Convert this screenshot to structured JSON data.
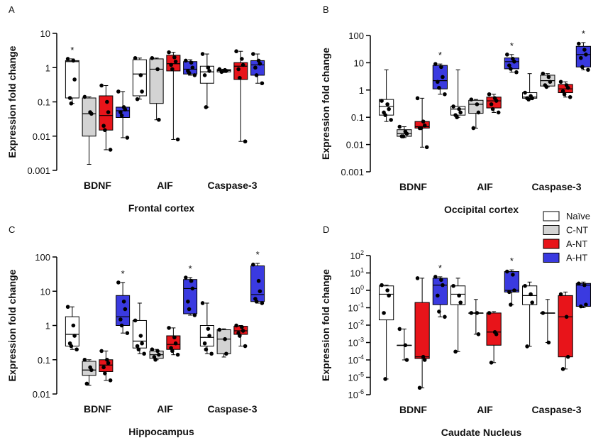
{
  "legend": [
    {
      "name": "Naïve",
      "color": "#ffffff"
    },
    {
      "name": "C-NT",
      "color": "#d3d3d3"
    },
    {
      "name": "A-NT",
      "color": "#e8141a"
    },
    {
      "name": "A-HT",
      "color": "#3a3ae0"
    }
  ],
  "chart_data": [
    {
      "type": "box",
      "panel": "A",
      "title": "Frontal cortex",
      "ylabel": "Expression fold change",
      "log": true,
      "categories": [
        "BDNF",
        "AIF",
        "Caspase-3"
      ],
      "ylim": [
        0.001,
        10
      ],
      "yticks": [
        0.001,
        0.01,
        0.1,
        1,
        10
      ],
      "series": [
        {
          "boxes": [
            {
              "min": 0.09,
              "q1": 0.13,
              "median": 1.5,
              "q3": 1.6,
              "max": 1.8,
              "points": [
                1.8,
                1.6,
                0.45,
                0.13,
                0.09
              ],
              "label": "*"
            },
            {
              "min": 0.12,
              "q1": 0.15,
              "median": 0.65,
              "q3": 1.7,
              "max": 1.9,
              "points": [
                1.9,
                0.6,
                0.2,
                0.12
              ]
            },
            {
              "min": 0.07,
              "q1": 0.35,
              "median": 0.75,
              "q3": 1.1,
              "max": 2.5,
              "points": [
                2.5,
                1,
                0.8,
                0.6,
                0.07
              ]
            }
          ]
        },
        {
          "boxes": [
            {
              "min": 0.0015,
              "q1": 0.01,
              "median": 0.045,
              "q3": 0.13,
              "max": 0.14,
              "points": [
                0.14,
                0.05,
                0.045
              ]
            },
            {
              "min": 0.03,
              "q1": 0.09,
              "median": 0.9,
              "q3": 1.8,
              "max": 1.9,
              "points": [
                1.9,
                0.9,
                0.03
              ]
            },
            {
              "min": 0.72,
              "q1": 0.75,
              "median": 0.82,
              "q3": 0.88,
              "max": 0.9,
              "points": [
                0.9,
                0.85,
                0.8,
                0.75
              ]
            }
          ]
        },
        {
          "boxes": [
            {
              "min": 0.004,
              "q1": 0.015,
              "median": 0.04,
              "q3": 0.15,
              "max": 0.3,
              "points": [
                0.3,
                0.1,
                0.05,
                0.02,
                0.015,
                0.004
              ]
            },
            {
              "min": 0.008,
              "q1": 0.8,
              "median": 1.3,
              "q3": 2.3,
              "max": 2.8,
              "points": [
                2.8,
                2,
                1.5,
                1.2,
                0.9,
                0.008
              ]
            },
            {
              "min": 0.007,
              "q1": 0.45,
              "median": 1.1,
              "q3": 1.4,
              "max": 3,
              "points": [
                3,
                1.8,
                1.2,
                0.9,
                0.5,
                0.007
              ]
            }
          ]
        },
        {
          "boxes": [
            {
              "min": 0.009,
              "q1": 0.035,
              "median": 0.055,
              "q3": 0.07,
              "max": 0.2,
              "points": [
                0.2,
                0.07,
                0.06,
                0.05,
                0.04,
                0.009
              ]
            },
            {
              "min": 0.6,
              "q1": 0.65,
              "median": 0.9,
              "q3": 1.5,
              "max": 1.7,
              "points": [
                1.6,
                1.4,
                1,
                0.8,
                0.7,
                0.6
              ]
            },
            {
              "min": 0.35,
              "q1": 0.6,
              "median": 1.2,
              "q3": 1.6,
              "max": 2.5,
              "points": [
                2.5,
                1.6,
                1.3,
                1,
                0.6,
                0.35
              ]
            }
          ]
        }
      ]
    },
    {
      "type": "box",
      "panel": "B",
      "title": "Occipital cortex",
      "ylabel": "Expression fold change",
      "log": true,
      "categories": [
        "BDNF",
        "AIF",
        "Caspase-3"
      ],
      "ylim": [
        0.001,
        100
      ],
      "yticks": [
        0.001,
        0.01,
        0.1,
        1,
        10,
        100
      ],
      "series": [
        {
          "boxes": [
            {
              "min": 0.07,
              "q1": 0.12,
              "median": 0.25,
              "q3": 0.45,
              "max": 5.5,
              "points": [
                0.4,
                0.3,
                0.2,
                0.15,
                0.12,
                0.08
              ]
            },
            {
              "min": 0.1,
              "q1": 0.12,
              "median": 0.2,
              "q3": 0.25,
              "max": 5.5,
              "points": [
                0.25,
                0.2,
                0.15,
                0.12,
                0.1
              ]
            },
            {
              "min": 0.45,
              "q1": 0.5,
              "median": 0.55,
              "q3": 0.8,
              "max": 4,
              "points": [
                0.8,
                0.6,
                0.5,
                0.5,
                0.45
              ]
            }
          ]
        },
        {
          "boxes": [
            {
              "min": 0.018,
              "q1": 0.02,
              "median": 0.025,
              "q3": 0.035,
              "max": 0.045,
              "points": [
                0.045,
                0.03,
                0.025,
                0.02,
                0.02
              ]
            },
            {
              "min": 0.04,
              "q1": 0.14,
              "median": 0.3,
              "q3": 0.42,
              "max": 0.45,
              "points": [
                0.45,
                0.3,
                0.15,
                0.04
              ]
            },
            {
              "min": 1.3,
              "q1": 1.4,
              "median": 2.2,
              "q3": 3.5,
              "max": 4,
              "points": [
                4,
                3,
                2,
                1.5,
                1.3
              ]
            }
          ]
        },
        {
          "boxes": [
            {
              "min": 0.008,
              "q1": 0.04,
              "median": 0.045,
              "q3": 0.07,
              "max": 0.5,
              "points": [
                0.5,
                0.07,
                0.05,
                0.04,
                0.04,
                0.008
              ]
            },
            {
              "min": 0.15,
              "q1": 0.22,
              "median": 0.4,
              "q3": 0.55,
              "max": 0.7,
              "points": [
                0.7,
                0.5,
                0.4,
                0.3,
                0.2,
                0.15
              ]
            },
            {
              "min": 0.55,
              "q1": 0.8,
              "median": 1.1,
              "q3": 1.6,
              "max": 2,
              "points": [
                2,
                1.5,
                1.2,
                0.9,
                0.7,
                0.55
              ]
            }
          ]
        },
        {
          "boxes": [
            {
              "min": 0.7,
              "q1": 1.1,
              "median": 2.2,
              "q3": 8,
              "max": 9,
              "points": [
                9,
                7,
                3,
                2,
                1.2,
                0.7
              ],
              "label": "*"
            },
            {
              "min": 4.5,
              "q1": 6,
              "median": 11,
              "q3": 15,
              "max": 20,
              "points": [
                20,
                14,
                11,
                8,
                6,
                4.5
              ],
              "label": "*"
            },
            {
              "min": 5.5,
              "q1": 7,
              "median": 20,
              "q3": 40,
              "max": 55,
              "points": [
                50,
                30,
                20,
                15,
                7,
                5.5
              ],
              "label": "*"
            }
          ]
        }
      ]
    },
    {
      "type": "box",
      "panel": "C",
      "title": "Hippocampus",
      "ylabel": "Expression fold change",
      "log": true,
      "categories": [
        "BDNF",
        "AIF",
        "Caspase-3"
      ],
      "ylim": [
        0.01,
        100
      ],
      "yticks": [
        0.01,
        0.1,
        1,
        10,
        100
      ],
      "series": [
        {
          "boxes": [
            {
              "min": 0.2,
              "q1": 0.25,
              "median": 0.55,
              "q3": 1.8,
              "max": 3.5,
              "points": [
                3.5,
                1,
                0.5,
                0.3,
                0.25,
                0.2
              ]
            },
            {
              "min": 0.15,
              "q1": 0.22,
              "median": 0.35,
              "q3": 1.4,
              "max": 4.5,
              "points": [
                1.4,
                0.5,
                0.3,
                0.25,
                0.2,
                0.15
              ]
            },
            {
              "min": 0.15,
              "q1": 0.25,
              "median": 0.45,
              "q3": 1,
              "max": 4.5,
              "points": [
                4.5,
                0.8,
                0.5,
                0.3,
                0.2,
                0.15
              ]
            }
          ]
        },
        {
          "boxes": [
            {
              "min": 0.018,
              "q1": 0.035,
              "median": 0.05,
              "q3": 0.09,
              "max": 0.1,
              "points": [
                0.1,
                0.06,
                0.05,
                0.02
              ]
            },
            {
              "min": 0.1,
              "q1": 0.11,
              "median": 0.14,
              "q3": 0.18,
              "max": 0.2,
              "points": [
                0.2,
                0.18,
                0.14,
                0.12,
                0.1
              ]
            },
            {
              "min": 0.12,
              "q1": 0.15,
              "median": 0.4,
              "q3": 0.75,
              "max": 0.8,
              "points": [
                0.75,
                0.4,
                0.15
              ]
            }
          ]
        },
        {
          "boxes": [
            {
              "min": 0.025,
              "q1": 0.045,
              "median": 0.07,
              "q3": 0.1,
              "max": 0.18,
              "points": [
                0.18,
                0.1,
                0.08,
                0.06,
                0.04,
                0.025
              ]
            },
            {
              "min": 0.14,
              "q1": 0.2,
              "median": 0.28,
              "q3": 0.5,
              "max": 0.85,
              "points": [
                0.85,
                0.45,
                0.3,
                0.22,
                0.18,
                0.14
              ]
            },
            {
              "min": 0.25,
              "q1": 0.55,
              "median": 0.7,
              "q3": 0.95,
              "max": 1,
              "points": [
                1,
                0.9,
                0.7,
                0.6,
                0.5,
                0.25
              ]
            }
          ]
        },
        {
          "boxes": [
            {
              "min": 0.6,
              "q1": 1,
              "median": 1.8,
              "q3": 7.5,
              "max": 18,
              "points": [
                18,
                5,
                3,
                1.5,
                1,
                0.6
              ],
              "label": "*"
            },
            {
              "min": 2,
              "q1": 2.2,
              "median": 12,
              "q3": 22,
              "max": 25,
              "points": [
                25,
                20,
                12,
                5,
                3,
                2
              ],
              "label": "*"
            },
            {
              "min": 4.5,
              "q1": 5,
              "median": 8,
              "q3": 55,
              "max": 65,
              "points": [
                60,
                20,
                10,
                6,
                5,
                4.5
              ],
              "label": "*"
            }
          ]
        }
      ]
    },
    {
      "type": "box",
      "panel": "D",
      "title": "Caudate Nucleus",
      "ylabel": "Expression fold change",
      "log": true,
      "categories": [
        "BDNF",
        "AIF",
        "Caspase-3"
      ],
      "ylim": [
        1e-06,
        100
      ],
      "yticks": [
        {
          "value": 1e-06,
          "label": "10",
          "sup": "-6"
        },
        {
          "value": 1e-05,
          "label": "10",
          "sup": "-5"
        },
        {
          "value": 0.0001,
          "label": "10",
          "sup": "-4"
        },
        {
          "value": 0.001,
          "label": "10",
          "sup": "-3"
        },
        {
          "value": 0.01,
          "label": "10",
          "sup": "-2"
        },
        {
          "value": 0.1,
          "label": "10",
          "sup": "-1"
        },
        {
          "value": 1,
          "label": "10",
          "sup": "0"
        },
        {
          "value": 10,
          "label": "10",
          "sup": "1"
        },
        {
          "value": 100,
          "label": "10",
          "sup": "2"
        }
      ],
      "series": [
        {
          "boxes": [
            {
              "min": 8e-06,
              "q1": 0.02,
              "median": 0.6,
              "q3": 1.8,
              "max": 2,
              "points": [
                2,
                1,
                0.5,
                0.05,
                8e-06
              ]
            },
            {
              "min": 0.0003,
              "q1": 0.15,
              "median": 0.6,
              "q3": 1.8,
              "max": 5,
              "points": [
                1.8,
                0.5,
                0.2,
                0.0003
              ]
            },
            {
              "min": 0.0006,
              "q1": 0.15,
              "median": 0.5,
              "q3": 1.8,
              "max": 3,
              "points": [
                1.8,
                0.6,
                0.2,
                0.0006
              ]
            }
          ]
        },
        {
          "boxes": [
            {
              "min": 0.0001,
              "q1": 0.0007,
              "median": 0.0007,
              "q3": 0.0007,
              "max": 0.006,
              "points": [
                0.006,
                0.0007,
                0.0001
              ]
            },
            {
              "min": 0.003,
              "q1": 0.05,
              "median": 0.05,
              "q3": 0.05,
              "max": 0.3,
              "points": [
                0.05,
                0.05,
                0.003
              ]
            },
            {
              "min": 0.001,
              "q1": 0.05,
              "median": 0.05,
              "q3": 0.05,
              "max": 0.3,
              "points": [
                0.05,
                0.001
              ]
            }
          ]
        },
        {
          "boxes": [
            {
              "min": 2.5e-06,
              "q1": 0.00012,
              "median": 0.00015,
              "q3": 0.2,
              "max": 5,
              "points": [
                5,
                0.00015,
                0.0001,
                2.5e-06
              ]
            },
            {
              "min": 7e-05,
              "q1": 0.0007,
              "median": 0.004,
              "q3": 0.05,
              "max": 0.06,
              "points": [
                0.05,
                0.004,
                0.003,
                7e-05
              ]
            },
            {
              "min": 3e-05,
              "q1": 0.00015,
              "median": 0.03,
              "q3": 0.5,
              "max": 0.8,
              "points": [
                0.6,
                0.03,
                0.00015,
                3e-05
              ]
            }
          ]
        },
        {
          "boxes": [
            {
              "min": 0.03,
              "q1": 0.15,
              "median": 2,
              "q3": 5,
              "max": 6,
              "points": [
                6,
                4,
                2,
                0.5,
                0.06,
                0.03
              ],
              "label": "*"
            },
            {
              "min": 0.15,
              "q1": 0.8,
              "median": 1,
              "q3": 12,
              "max": 15,
              "points": [
                12,
                8,
                1,
                0.8,
                0.15
              ],
              "label": "*"
            },
            {
              "min": 0.1,
              "q1": 0.12,
              "median": 2,
              "q3": 2.5,
              "max": 3,
              "points": [
                2.5,
                2,
                0.15,
                0.12
              ]
            }
          ]
        }
      ]
    }
  ]
}
